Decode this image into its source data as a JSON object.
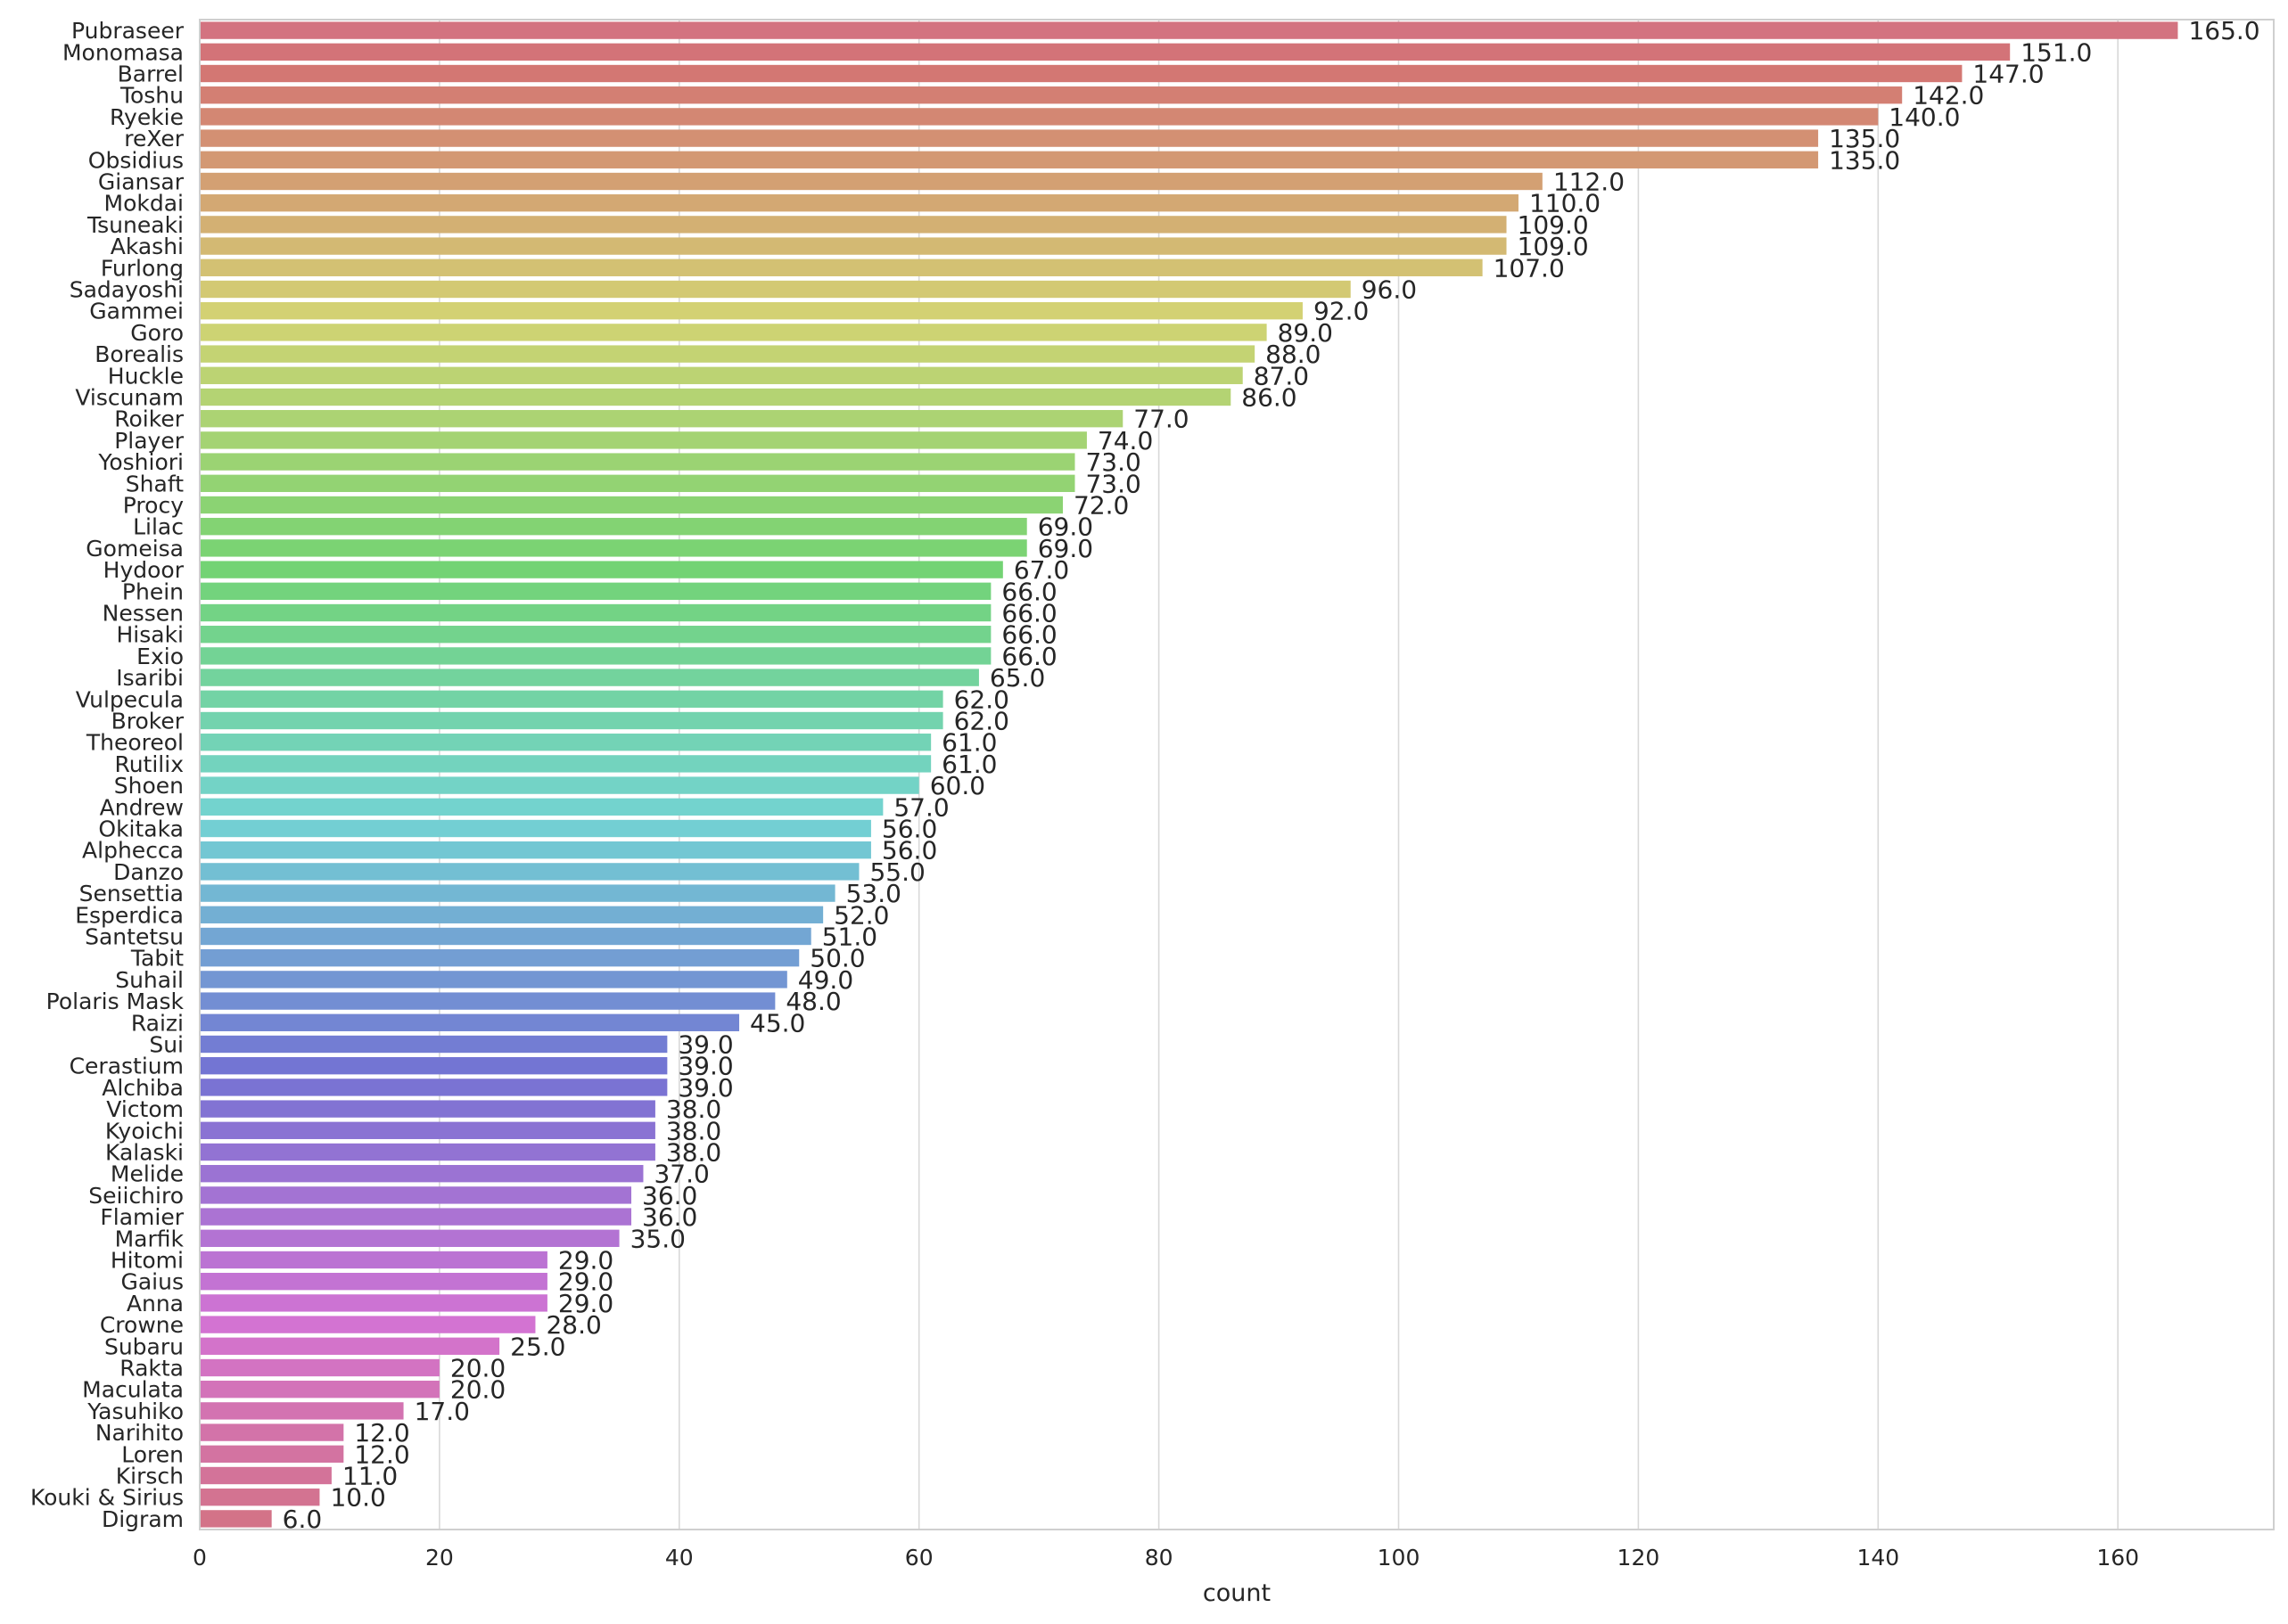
{
  "chart_data": {
    "type": "bar",
    "orientation": "horizontal",
    "xlabel": "count",
    "ylabel": "",
    "xlim": [
      0,
      173
    ],
    "xticks": [
      0,
      20,
      40,
      60,
      80,
      100,
      120,
      140,
      160
    ],
    "grid": "vertical",
    "categories": [
      "Pubraseer",
      "Monomasa",
      "Barrel",
      "Toshu",
      "Ryekie",
      "reXer",
      "Obsidius",
      "Giansar",
      "Mokdai",
      "Tsuneaki",
      "Akashi",
      "Furlong",
      "Sadayoshi",
      "Gammei",
      "Goro",
      "Borealis",
      "Huckle",
      "Viscunam",
      "Roiker",
      "Player",
      "Yoshiori",
      "Shaft",
      "Procy",
      "Lilac",
      "Gomeisa",
      "Hydoor",
      "Phein",
      "Nessen",
      "Hisaki",
      "Exio",
      "Isaribi",
      "Vulpecula",
      "Broker",
      "Theoreol",
      "Rutilix",
      "Shoen",
      "Andrew",
      "Okitaka",
      "Alphecca",
      "Danzo",
      "Sensettia",
      "Esperdica",
      "Santetsu",
      "Tabit",
      "Suhail",
      "Polaris Mask",
      "Raizi",
      "Sui",
      "Cerastium",
      "Alchiba",
      "Victom",
      "Kyoichi",
      "Kalaski",
      "Melide",
      "Seiichiro",
      "Flamier",
      "Marfik",
      "Hitomi",
      "Gaius",
      "Anna",
      "Crowne",
      "Subaru",
      "Rakta",
      "Maculata",
      "Yasuhiko",
      "Narihito",
      "Loren",
      "Kirsch",
      "Kouki & Sirius",
      "Digram"
    ],
    "values": [
      165,
      151,
      147,
      142,
      140,
      135,
      135,
      112,
      110,
      109,
      109,
      107,
      96,
      92,
      89,
      88,
      87,
      86,
      77,
      74,
      73,
      73,
      72,
      69,
      69,
      67,
      66,
      66,
      66,
      66,
      65,
      62,
      62,
      61,
      61,
      60,
      57,
      56,
      56,
      55,
      53,
      52,
      51,
      50,
      49,
      48,
      45,
      39,
      39,
      39,
      38,
      38,
      38,
      37,
      36,
      36,
      35,
      29,
      29,
      29,
      28,
      25,
      20,
      20,
      17,
      12,
      12,
      11,
      10,
      6
    ],
    "value_labels": [
      "165.0",
      "151.0",
      "147.0",
      "142.0",
      "140.0",
      "135.0",
      "135.0",
      "112.0",
      "110.0",
      "109.0",
      "109.0",
      "107.0",
      "96.0",
      "92.0",
      "89.0",
      "88.0",
      "87.0",
      "86.0",
      "77.0",
      "74.0",
      "73.0",
      "73.0",
      "72.0",
      "69.0",
      "69.0",
      "67.0",
      "66.0",
      "66.0",
      "66.0",
      "66.0",
      "65.0",
      "62.0",
      "62.0",
      "61.0",
      "61.0",
      "60.0",
      "57.0",
      "56.0",
      "56.0",
      "55.0",
      "53.0",
      "52.0",
      "51.0",
      "50.0",
      "49.0",
      "48.0",
      "45.0",
      "39.0",
      "39.0",
      "39.0",
      "38.0",
      "38.0",
      "38.0",
      "37.0",
      "36.0",
      "36.0",
      "35.0",
      "29.0",
      "29.0",
      "29.0",
      "28.0",
      "25.0",
      "20.0",
      "20.0",
      "17.0",
      "12.0",
      "12.0",
      "11.0",
      "10.0",
      "6.0"
    ],
    "palette": "husl"
  }
}
